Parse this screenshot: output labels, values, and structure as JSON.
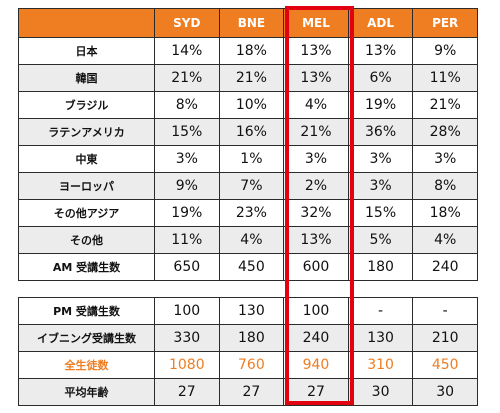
{
  "columns": [
    "SYD",
    "BNE",
    "MEL",
    "ADL",
    "PER"
  ],
  "upper_rows": [
    {
      "label": "日本",
      "values": [
        "14%",
        "18%",
        "13%",
        "13%",
        "9%"
      ]
    },
    {
      "label": "韓国",
      "values": [
        "21%",
        "21%",
        "13%",
        "6%",
        "11%"
      ]
    },
    {
      "label": "ブラジル",
      "values": [
        "8%",
        "10%",
        "4%",
        "19%",
        "21%"
      ]
    },
    {
      "label": "ラテンアメリカ",
      "values": [
        "15%",
        "16%",
        "21%",
        "36%",
        "28%"
      ]
    },
    {
      "label": "中東",
      "values": [
        "3%",
        "1%",
        "3%",
        "3%",
        "3%"
      ]
    },
    {
      "label": "ヨーロッパ",
      "values": [
        "9%",
        "7%",
        "2%",
        "3%",
        "8%"
      ]
    },
    {
      "label": "その他アジア",
      "values": [
        "19%",
        "23%",
        "32%",
        "15%",
        "18%"
      ]
    },
    {
      "label": "その他",
      "values": [
        "11%",
        "4%",
        "13%",
        "5%",
        "4%"
      ]
    },
    {
      "label": "AM 受講生数",
      "values": [
        "650",
        "450",
        "600",
        "180",
        "240"
      ]
    }
  ],
  "lower_rows": [
    {
      "label": "PM 受講生数",
      "values": [
        "100",
        "130",
        "100",
        "-",
        "-"
      ]
    },
    {
      "label": "イブニング受講生数",
      "values": [
        "330",
        "180",
        "240",
        "130",
        "210"
      ]
    },
    {
      "label": "全生徒数",
      "values": [
        "1080",
        "760",
        "940",
        "310",
        "450"
      ]
    },
    {
      "label": "平均年齢",
      "values": [
        "27",
        "27",
        "27",
        "30",
        "30"
      ]
    }
  ],
  "highlighted_column": "MEL",
  "colors": {
    "header": "#ef7d22",
    "accent_text": "#ef7d22",
    "highlight_border": "#e3000f",
    "row_shade": "#ececec"
  }
}
